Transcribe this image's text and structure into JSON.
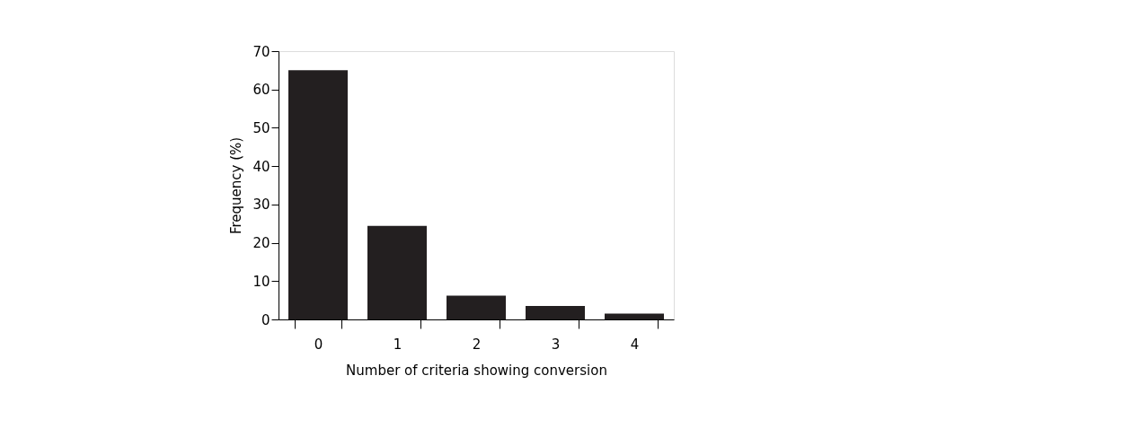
{
  "chart_data": {
    "type": "bar",
    "xlabel": "Number of criteria showing conversion",
    "ylabel": "Frequency (%)",
    "categories": [
      "0",
      "1",
      "2",
      "3",
      "4"
    ],
    "values": [
      65,
      24.4,
      6.2,
      3.5,
      1.5
    ],
    "color": "#231f20",
    "ylim": [
      0,
      70
    ],
    "yticks": [
      0,
      10,
      20,
      30,
      40,
      50,
      60,
      70
    ],
    "grid": false
  }
}
